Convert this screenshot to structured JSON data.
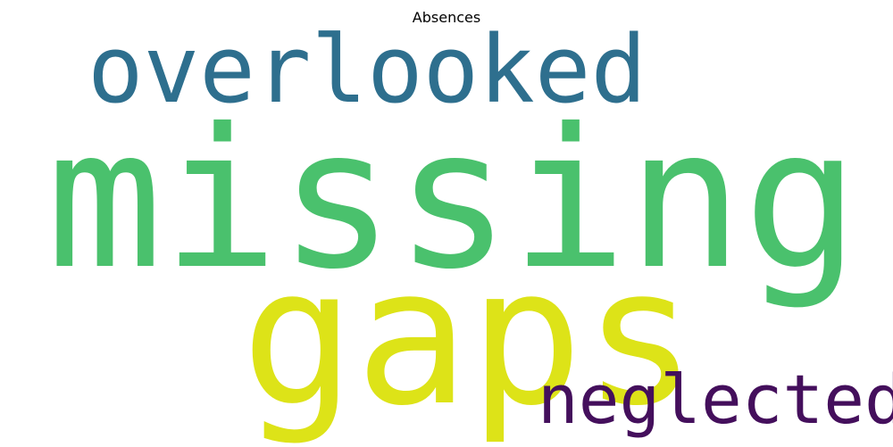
{
  "title": "Absences",
  "words": {
    "overlooked": {
      "text": "overlooked",
      "color": "#2e6f8e"
    },
    "missing": {
      "text": "missing",
      "color": "#4ac16d"
    },
    "gaps": {
      "text": "gaps",
      "color": "#dde318"
    },
    "neglected": {
      "text": "neglected",
      "color": "#440f5c"
    }
  }
}
